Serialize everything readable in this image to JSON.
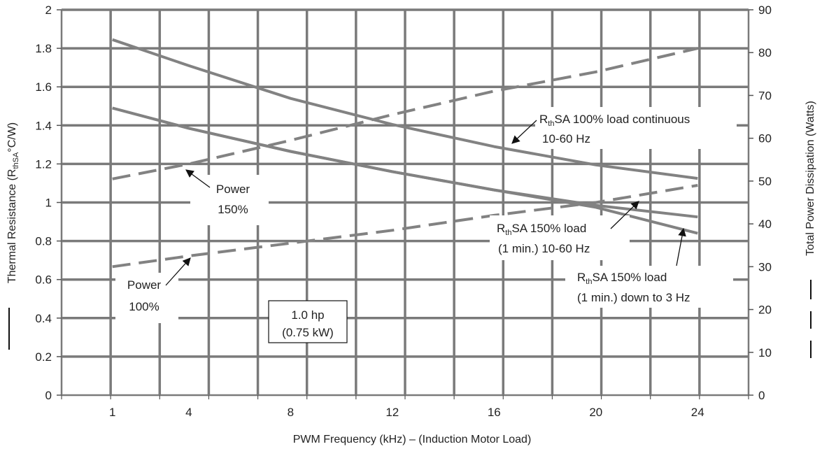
{
  "chart_data": {
    "type": "line",
    "xlabel": "PWM Frequency (kHz) – (Induction Motor Load)",
    "ylabel": {
      "main": "Thermal Resistance (R",
      "sub": "thSA",
      "tail": "°C/W)"
    },
    "y2label": "Total Power Dissipation (Watts)",
    "x_ticks": [
      {
        "label": "1",
        "x": 1
      },
      {
        "label": "4",
        "x": 4
      },
      {
        "label": "8",
        "x": 8
      },
      {
        "label": "12",
        "x": 12
      },
      {
        "label": "16",
        "x": 16
      },
      {
        "label": "20",
        "x": 20
      },
      {
        "label": "24",
        "x": 24
      }
    ],
    "xlim": [
      -1,
      26
    ],
    "ylim": [
      0,
      2
    ],
    "y_ticks": [
      "0",
      "0.2",
      "0.4",
      "0.6",
      "0.8",
      "1",
      "1.2",
      "1.4",
      "1.6",
      "1.8",
      "2"
    ],
    "y2lim": [
      0,
      90
    ],
    "y2_ticks": [
      "0",
      "10",
      "20",
      "30",
      "40",
      "50",
      "60",
      "70",
      "80",
      "90"
    ],
    "grid": true,
    "series": [
      {
        "axis": "left",
        "style": "solid",
        "points": [
          [
            1,
            1.845
          ],
          [
            4,
            1.71
          ],
          [
            8,
            1.54
          ],
          [
            12,
            1.405
          ],
          [
            16,
            1.29
          ],
          [
            20,
            1.195
          ],
          [
            24,
            1.125
          ]
        ]
      },
      {
        "axis": "left",
        "style": "solid",
        "points": [
          [
            1,
            1.49
          ],
          [
            4,
            1.385
          ],
          [
            8,
            1.265
          ],
          [
            12,
            1.16
          ],
          [
            16,
            1.065
          ],
          [
            20,
            0.985
          ],
          [
            24,
            0.925
          ]
        ]
      },
      {
        "axis": "left",
        "style": "solid",
        "points": [
          [
            1,
            1.49
          ],
          [
            4,
            1.385
          ],
          [
            8,
            1.265
          ],
          [
            12,
            1.16
          ],
          [
            16,
            1.065
          ],
          [
            20,
            0.975
          ],
          [
            24,
            0.84
          ]
        ]
      },
      {
        "axis": "right",
        "style": "dashed",
        "points": [
          [
            1,
            50.5
          ],
          [
            4,
            54
          ],
          [
            8,
            59.5
          ],
          [
            12,
            65.5
          ],
          [
            16,
            71
          ],
          [
            20,
            75.5
          ],
          [
            24,
            81
          ]
        ]
      },
      {
        "axis": "right",
        "style": "dashed",
        "points": [
          [
            1,
            30
          ],
          [
            4,
            32.5
          ],
          [
            8,
            35.5
          ],
          [
            12,
            38.5
          ],
          [
            16,
            42
          ],
          [
            20,
            45
          ],
          [
            24,
            49
          ]
        ]
      }
    ],
    "annotations": {
      "power150": [
        "Power",
        "150%"
      ],
      "power100": [
        "Power",
        "100%"
      ],
      "rated": [
        "1.0 hp",
        "(0.75 kW)"
      ],
      "rth100": {
        "l1_pre": "R",
        "l1_sub": "th",
        "l1_post": "SA 100% load continuous",
        "l2": "10-60 Hz"
      },
      "rth150a": {
        "l1_pre": "R",
        "l1_sub": "th",
        "l1_post": "SA 150% load",
        "l2": "(1 min.) 10-60 Hz"
      },
      "rth150b": {
        "l1_pre": "R",
        "l1_sub": "th",
        "l1_post": "SA 150% load",
        "l2": "(1 min.) down to 3 Hz"
      }
    }
  }
}
